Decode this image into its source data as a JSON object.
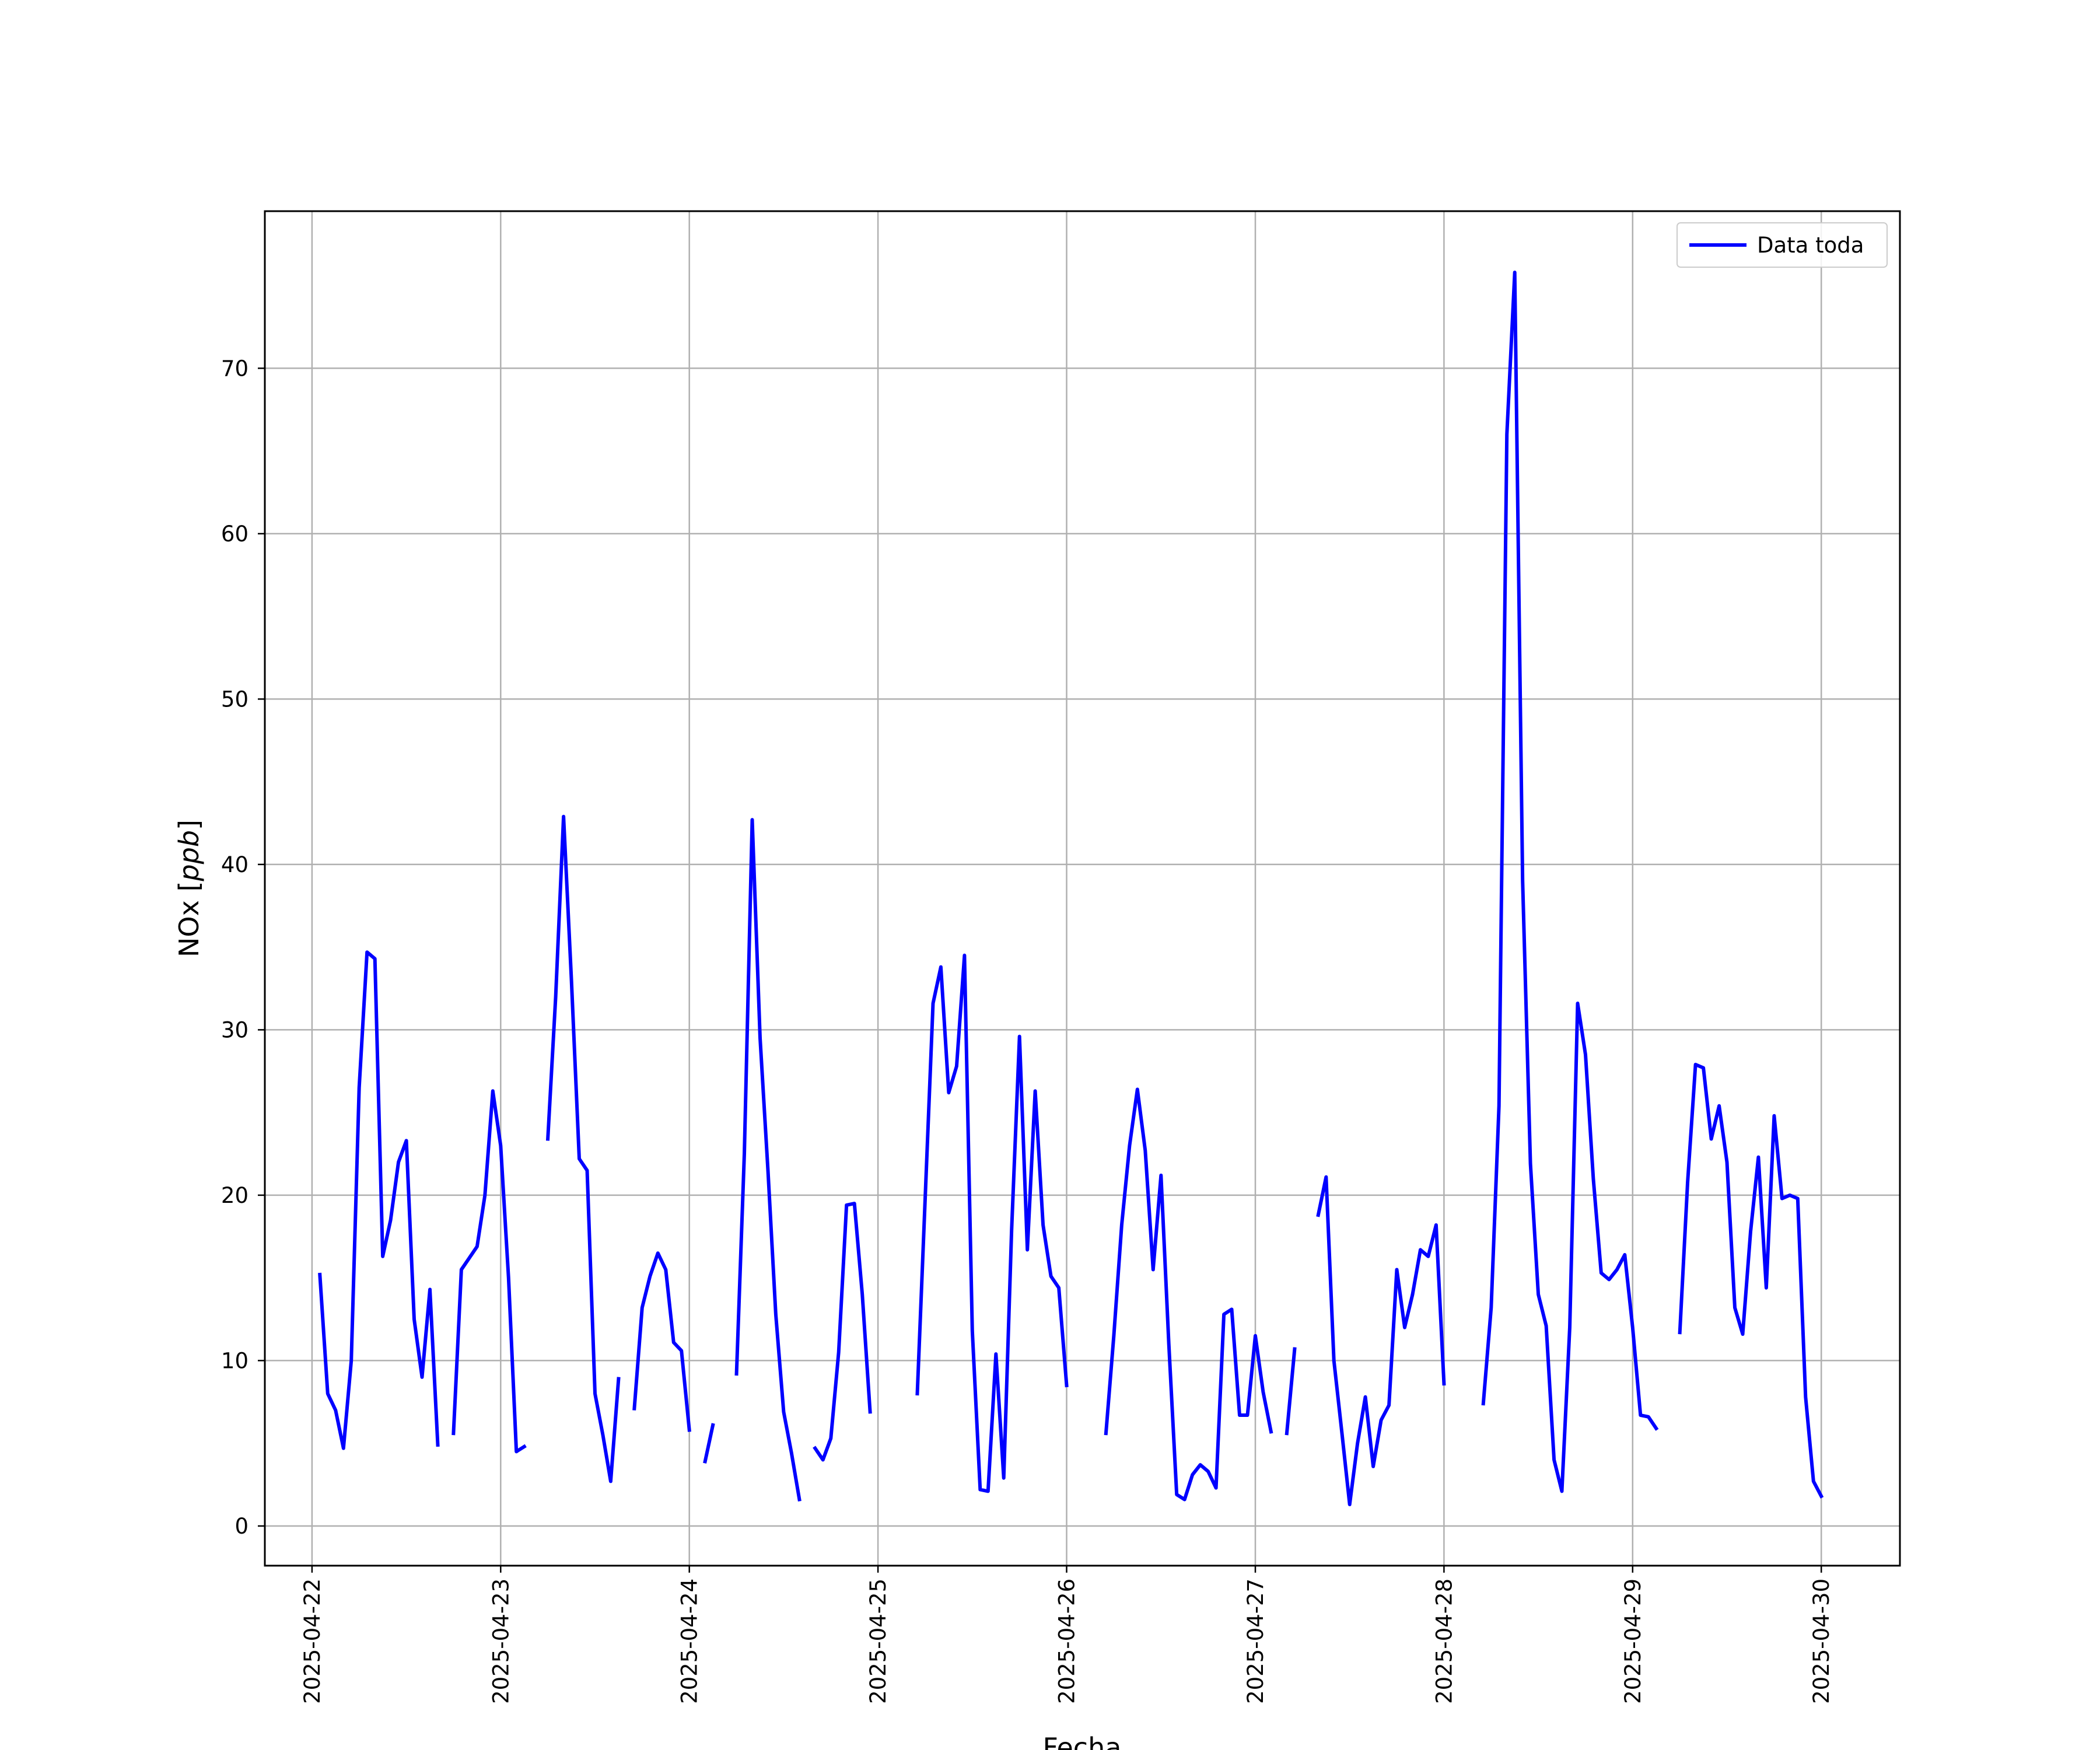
{
  "chart_data": {
    "type": "line",
    "xlabel": "Fecha",
    "ylabel_text": "NOx [",
    "ylabel_unit": "ppb",
    "ylabel_close": "]",
    "grid": true,
    "legend_position": "top-right",
    "x_range": [
      "2025-04-21T18:00",
      "2025-04-30T10:00"
    ],
    "ylim": [
      -2.4,
      79.5
    ],
    "x_ticks": [
      "2025-04-22",
      "2025-04-23",
      "2025-04-24",
      "2025-04-25",
      "2025-04-26",
      "2025-04-27",
      "2025-04-28",
      "2025-04-29",
      "2025-04-30"
    ],
    "y_ticks": [
      0,
      10,
      20,
      30,
      40,
      50,
      60,
      70
    ],
    "series": [
      {
        "name": "Data toda",
        "color": "#0000ff",
        "segments": [
          [
            [
              "2025-04-22T01:00",
              15.2
            ],
            [
              "2025-04-22T02:00",
              8.0
            ],
            [
              "2025-04-22T03:00",
              7.0
            ],
            [
              "2025-04-22T04:00",
              4.7
            ],
            [
              "2025-04-22T05:00",
              10.0
            ],
            [
              "2025-04-22T06:00",
              26.5
            ],
            [
              "2025-04-22T07:00",
              34.7
            ],
            [
              "2025-04-22T08:00",
              34.3
            ],
            [
              "2025-04-22T09:00",
              16.3
            ],
            [
              "2025-04-22T10:00",
              18.5
            ],
            [
              "2025-04-22T11:00",
              22.0
            ],
            [
              "2025-04-22T12:00",
              23.3
            ],
            [
              "2025-04-22T13:00",
              12.5
            ],
            [
              "2025-04-22T14:00",
              9.0
            ],
            [
              "2025-04-22T15:00",
              14.3
            ],
            [
              "2025-04-22T16:00",
              4.9
            ]
          ],
          [
            [
              "2025-04-22T18:00",
              5.6
            ],
            [
              "2025-04-22T19:00",
              15.5
            ],
            [
              "2025-04-22T20:00",
              16.2
            ],
            [
              "2025-04-22T21:00",
              16.9
            ],
            [
              "2025-04-22T22:00",
              20.0
            ],
            [
              "2025-04-22T23:00",
              26.3
            ],
            [
              "2025-04-23T00:00",
              23.0
            ],
            [
              "2025-04-23T01:00",
              15.0
            ],
            [
              "2025-04-23T02:00",
              4.5
            ],
            [
              "2025-04-23T03:00",
              4.8
            ]
          ],
          [
            [
              "2025-04-23T06:00",
              23.4
            ],
            [
              "2025-04-23T07:00",
              32.0
            ],
            [
              "2025-04-23T08:00",
              42.9
            ],
            [
              "2025-04-23T09:00",
              33.0
            ],
            [
              "2025-04-23T10:00",
              22.2
            ],
            [
              "2025-04-23T11:00",
              21.5
            ],
            [
              "2025-04-23T12:00",
              8.0
            ],
            [
              "2025-04-23T13:00",
              5.5
            ],
            [
              "2025-04-23T14:00",
              2.7
            ],
            [
              "2025-04-23T15:00",
              8.9
            ]
          ],
          [
            [
              "2025-04-23T17:00",
              7.1
            ],
            [
              "2025-04-23T18:00",
              13.2
            ],
            [
              "2025-04-23T19:00",
              15.1
            ],
            [
              "2025-04-23T20:00",
              16.5
            ],
            [
              "2025-04-23T21:00",
              15.5
            ],
            [
              "2025-04-23T22:00",
              11.1
            ],
            [
              "2025-04-23T23:00",
              10.6
            ],
            [
              "2025-04-24T00:00",
              5.8
            ]
          ],
          [
            [
              "2025-04-24T02:00",
              3.9
            ],
            [
              "2025-04-24T03:00",
              6.1
            ]
          ],
          [
            [
              "2025-04-24T06:00",
              9.2
            ],
            [
              "2025-04-24T07:00",
              22.5
            ],
            [
              "2025-04-24T08:00",
              42.7
            ],
            [
              "2025-04-24T09:00",
              29.5
            ],
            [
              "2025-04-24T10:00",
              21.5
            ],
            [
              "2025-04-24T11:00",
              12.8
            ],
            [
              "2025-04-24T12:00",
              6.9
            ],
            [
              "2025-04-24T13:00",
              4.4
            ],
            [
              "2025-04-24T14:00",
              1.6
            ]
          ],
          [
            [
              "2025-04-24T16:00",
              4.7
            ],
            [
              "2025-04-24T17:00",
              4.0
            ],
            [
              "2025-04-24T18:00",
              5.3
            ],
            [
              "2025-04-24T19:00",
              10.5
            ],
            [
              "2025-04-24T20:00",
              19.4
            ],
            [
              "2025-04-24T21:00",
              19.5
            ],
            [
              "2025-04-24T22:00",
              14.0
            ],
            [
              "2025-04-24T23:00",
              6.9
            ]
          ],
          [
            [
              "2025-04-25T05:00",
              8.0
            ],
            [
              "2025-04-25T06:00",
              19.8
            ],
            [
              "2025-04-25T07:00",
              31.6
            ],
            [
              "2025-04-25T08:00",
              33.8
            ],
            [
              "2025-04-25T09:00",
              26.2
            ],
            [
              "2025-04-25T10:00",
              27.8
            ],
            [
              "2025-04-25T11:00",
              34.5
            ],
            [
              "2025-04-25T12:00",
              11.8
            ],
            [
              "2025-04-25T13:00",
              2.2
            ],
            [
              "2025-04-25T14:00",
              2.1
            ],
            [
              "2025-04-25T15:00",
              10.4
            ],
            [
              "2025-04-25T16:00",
              2.9
            ],
            [
              "2025-04-25T17:00",
              17.9
            ],
            [
              "2025-04-25T18:00",
              29.6
            ],
            [
              "2025-04-25T19:00",
              16.7
            ],
            [
              "2025-04-25T20:00",
              26.3
            ],
            [
              "2025-04-25T21:00",
              18.2
            ],
            [
              "2025-04-25T22:00",
              15.1
            ],
            [
              "2025-04-25T23:00",
              14.4
            ],
            [
              "2025-04-26T00:00",
              8.5
            ]
          ],
          [
            [
              "2025-04-26T05:00",
              5.6
            ],
            [
              "2025-04-26T06:00",
              11.5
            ],
            [
              "2025-04-26T07:00",
              18.2
            ],
            [
              "2025-04-26T08:00",
              23.0
            ],
            [
              "2025-04-26T09:00",
              26.4
            ],
            [
              "2025-04-26T10:00",
              22.7
            ],
            [
              "2025-04-26T11:00",
              15.5
            ],
            [
              "2025-04-26T12:00",
              21.2
            ],
            [
              "2025-04-26T13:00",
              11.0
            ],
            [
              "2025-04-26T14:00",
              1.9
            ],
            [
              "2025-04-26T15:00",
              1.6
            ],
            [
              "2025-04-26T16:00",
              3.1
            ],
            [
              "2025-04-26T17:00",
              3.7
            ],
            [
              "2025-04-26T18:00",
              3.3
            ],
            [
              "2025-04-26T19:00",
              2.3
            ],
            [
              "2025-04-26T20:00",
              12.8
            ],
            [
              "2025-04-26T21:00",
              13.1
            ],
            [
              "2025-04-26T22:00",
              6.7
            ],
            [
              "2025-04-26T23:00",
              6.7
            ],
            [
              "2025-04-27T00:00",
              11.5
            ],
            [
              "2025-04-27T01:00",
              8.1
            ],
            [
              "2025-04-27T02:00",
              5.7
            ]
          ],
          [
            [
              "2025-04-27T04:00",
              5.6
            ],
            [
              "2025-04-27T05:00",
              10.7
            ]
          ],
          [
            [
              "2025-04-27T08:00",
              18.8
            ],
            [
              "2025-04-27T09:00",
              21.1
            ],
            [
              "2025-04-27T10:00",
              10.0
            ],
            [
              "2025-04-27T11:00",
              5.7
            ],
            [
              "2025-04-27T12:00",
              1.3
            ],
            [
              "2025-04-27T13:00",
              5.0
            ],
            [
              "2025-04-27T14:00",
              7.8
            ],
            [
              "2025-04-27T15:00",
              3.6
            ],
            [
              "2025-04-27T16:00",
              6.4
            ],
            [
              "2025-04-27T17:00",
              7.3
            ],
            [
              "2025-04-27T18:00",
              15.5
            ],
            [
              "2025-04-27T19:00",
              12.0
            ],
            [
              "2025-04-27T20:00",
              14.0
            ],
            [
              "2025-04-27T21:00",
              16.7
            ],
            [
              "2025-04-27T22:00",
              16.3
            ],
            [
              "2025-04-27T23:00",
              18.2
            ],
            [
              "2025-04-28T00:00",
              8.6
            ]
          ],
          [
            [
              "2025-04-28T05:00",
              7.4
            ],
            [
              "2025-04-28T06:00",
              13.2
            ],
            [
              "2025-04-28T07:00",
              25.4
            ],
            [
              "2025-04-28T08:00",
              66.0
            ],
            [
              "2025-04-28T09:00",
              75.8
            ],
            [
              "2025-04-28T10:00",
              39.0
            ],
            [
              "2025-04-28T11:00",
              21.9
            ],
            [
              "2025-04-28T12:00",
              14.0
            ],
            [
              "2025-04-28T13:00",
              12.1
            ],
            [
              "2025-04-28T14:00",
              4.0
            ],
            [
              "2025-04-28T15:00",
              2.1
            ],
            [
              "2025-04-28T16:00",
              12.0
            ],
            [
              "2025-04-28T17:00",
              31.6
            ],
            [
              "2025-04-28T18:00",
              28.5
            ],
            [
              "2025-04-28T19:00",
              21.0
            ],
            [
              "2025-04-28T20:00",
              15.3
            ],
            [
              "2025-04-28T21:00",
              14.9
            ],
            [
              "2025-04-28T22:00",
              15.5
            ],
            [
              "2025-04-28T23:00",
              16.4
            ],
            [
              "2025-04-29T00:00",
              12.0
            ],
            [
              "2025-04-29T01:00",
              6.7
            ],
            [
              "2025-04-29T02:00",
              6.6
            ],
            [
              "2025-04-29T03:00",
              5.9
            ]
          ],
          [
            [
              "2025-04-29T06:00",
              11.7
            ],
            [
              "2025-04-29T07:00",
              20.8
            ],
            [
              "2025-04-29T08:00",
              27.9
            ],
            [
              "2025-04-29T09:00",
              27.7
            ],
            [
              "2025-04-29T10:00",
              23.4
            ],
            [
              "2025-04-29T11:00",
              25.4
            ],
            [
              "2025-04-29T12:00",
              22.0
            ],
            [
              "2025-04-29T13:00",
              13.2
            ],
            [
              "2025-04-29T14:00",
              11.6
            ],
            [
              "2025-04-29T15:00",
              17.8
            ],
            [
              "2025-04-29T16:00",
              22.3
            ],
            [
              "2025-04-29T17:00",
              14.4
            ],
            [
              "2025-04-29T18:00",
              24.8
            ],
            [
              "2025-04-29T19:00",
              19.8
            ],
            [
              "2025-04-29T20:00",
              20.0
            ],
            [
              "2025-04-29T21:00",
              19.8
            ],
            [
              "2025-04-29T22:00",
              7.8
            ],
            [
              "2025-04-29T23:00",
              2.7
            ],
            [
              "2025-04-30T00:00",
              1.8
            ]
          ]
        ]
      }
    ]
  }
}
